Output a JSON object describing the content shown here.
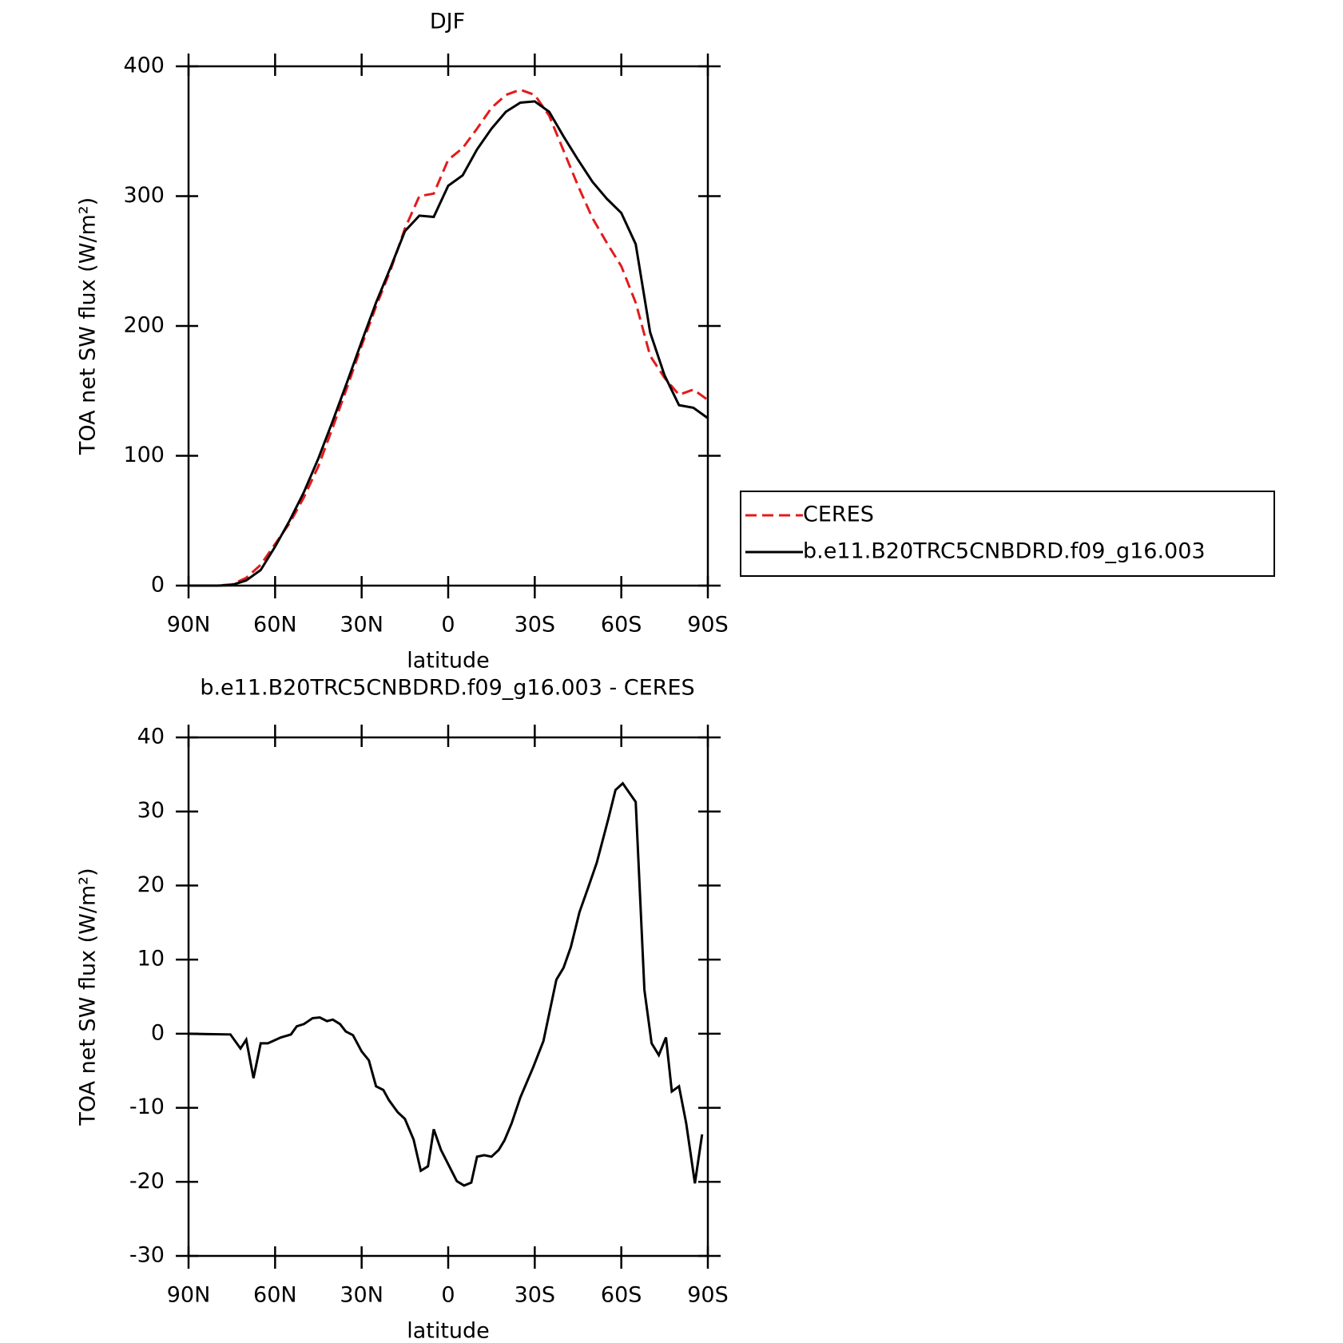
{
  "chart_data": [
    {
      "type": "line",
      "title": "DJF",
      "xlabel": "latitude",
      "ylabel": "TOA net SW flux (W/m²)",
      "x": [
        -90,
        -85,
        -80,
        -75,
        -70,
        -65,
        -60,
        -55,
        -50,
        -45,
        -40,
        -35,
        -30,
        -25,
        -20,
        -15,
        -10,
        -5,
        0,
        5,
        10,
        15,
        20,
        25,
        30,
        35,
        40,
        45,
        50,
        55,
        60,
        65,
        70,
        75,
        80,
        85,
        90
      ],
      "series": [
        {
          "name": "CERES",
          "color": "#e41a1c",
          "linestyle": "dashed",
          "values": [
            0,
            0,
            0,
            1,
            6,
            16,
            32,
            48,
            68,
            92,
            122,
            153,
            185,
            215,
            243,
            275,
            300,
            302,
            328,
            337,
            352,
            368,
            378,
            382,
            378,
            362,
            335,
            308,
            283,
            264,
            246,
            218,
            177,
            160,
            147,
            151,
            143
          ]
        },
        {
          "name": "b.e11.B20TRC5CNBDRD.f09_g16.003",
          "color": "#000000",
          "linestyle": "solid",
          "values": [
            0,
            0,
            0,
            0.5,
            4,
            12,
            30,
            50,
            72,
            98,
            127,
            157,
            188,
            218,
            245,
            273,
            285,
            284,
            308,
            316,
            336,
            352,
            365,
            372,
            373,
            365,
            346,
            328,
            311,
            298,
            287,
            263,
            195,
            162,
            139,
            137,
            129
          ]
        }
      ],
      "xlim": [
        -90,
        90
      ],
      "xticks": [
        {
          "value": -90,
          "label": "90N"
        },
        {
          "value": -60,
          "label": "60N"
        },
        {
          "value": -30,
          "label": "30N"
        },
        0,
        {
          "value": 30,
          "label": "30S"
        },
        {
          "value": 60,
          "label": "60S"
        },
        {
          "value": 90,
          "label": "90S"
        }
      ],
      "ylim": [
        0,
        400
      ],
      "yticks": [
        0,
        100,
        200,
        300,
        400
      ],
      "legend": "outside-right"
    },
    {
      "type": "line",
      "title": "b.e11.B20TRC5CNBDRD.f09_g16.003 - CERES",
      "xlabel": "latitude",
      "ylabel": "TOA net SW flux (W/m²)",
      "x": [
        -90,
        -75.5,
        -72,
        -70,
        -67.5,
        -65,
        -62.5,
        -58,
        -54.5,
        -52.5,
        -50,
        -47,
        -44.5,
        -42,
        -40,
        -37.5,
        -35.5,
        -33,
        -30,
        -27.5,
        -25,
        -22.5,
        -20.5,
        -17.5,
        -15,
        -12,
        -9.5,
        -7,
        -5,
        -2.5,
        3,
        5.5,
        8,
        10,
        12.5,
        15,
        17.5,
        19.5,
        22,
        25,
        29.5,
        33,
        37.5,
        40,
        42.5,
        45.5,
        48.5,
        51.5,
        55.5,
        58,
        60.5,
        63,
        65,
        68,
        70.5,
        73,
        75.5,
        77.5,
        80,
        82.5,
        85.5,
        88
      ],
      "series": [
        {
          "name": "b.e11.B20TRC5CNBDRD.f09_g16.003 - CERES",
          "color": "#000000",
          "linestyle": "solid",
          "values": [
            0,
            -0.1,
            -2,
            -0.8,
            -6,
            -1.3,
            -1.3,
            -0.5,
            -0.1,
            1,
            1.3,
            2.1,
            2.2,
            1.7,
            1.9,
            1.3,
            0.3,
            -0.2,
            -2.4,
            -3.6,
            -7.1,
            -7.6,
            -9,
            -10.6,
            -11.5,
            -14.3,
            -18.5,
            -17.9,
            -12.9,
            -15.7,
            -19.9,
            -20.5,
            -20.1,
            -16.6,
            -16.4,
            -16.6,
            -15.7,
            -14.4,
            -12.1,
            -8.6,
            -4.5,
            -1,
            7.3,
            8.9,
            11.7,
            16.4,
            19.7,
            23.1,
            29,
            32.9,
            33.8,
            32.4,
            31.3,
            5.9,
            -1.3,
            -2.9,
            -0.5,
            -7.8,
            -7.1,
            -12.1,
            -20.2,
            -13.6
          ]
        }
      ],
      "xlim": [
        -90,
        90
      ],
      "xticks": [
        {
          "value": -90,
          "label": "90N"
        },
        {
          "value": -60,
          "label": "60N"
        },
        {
          "value": -30,
          "label": "30N"
        },
        0,
        {
          "value": 30,
          "label": "30S"
        },
        {
          "value": 60,
          "label": "60S"
        },
        {
          "value": 90,
          "label": "90S"
        }
      ],
      "ylim": [
        -30,
        40
      ],
      "yticks": [
        -30,
        -20,
        -10,
        0,
        10,
        20,
        30,
        40
      ]
    }
  ]
}
